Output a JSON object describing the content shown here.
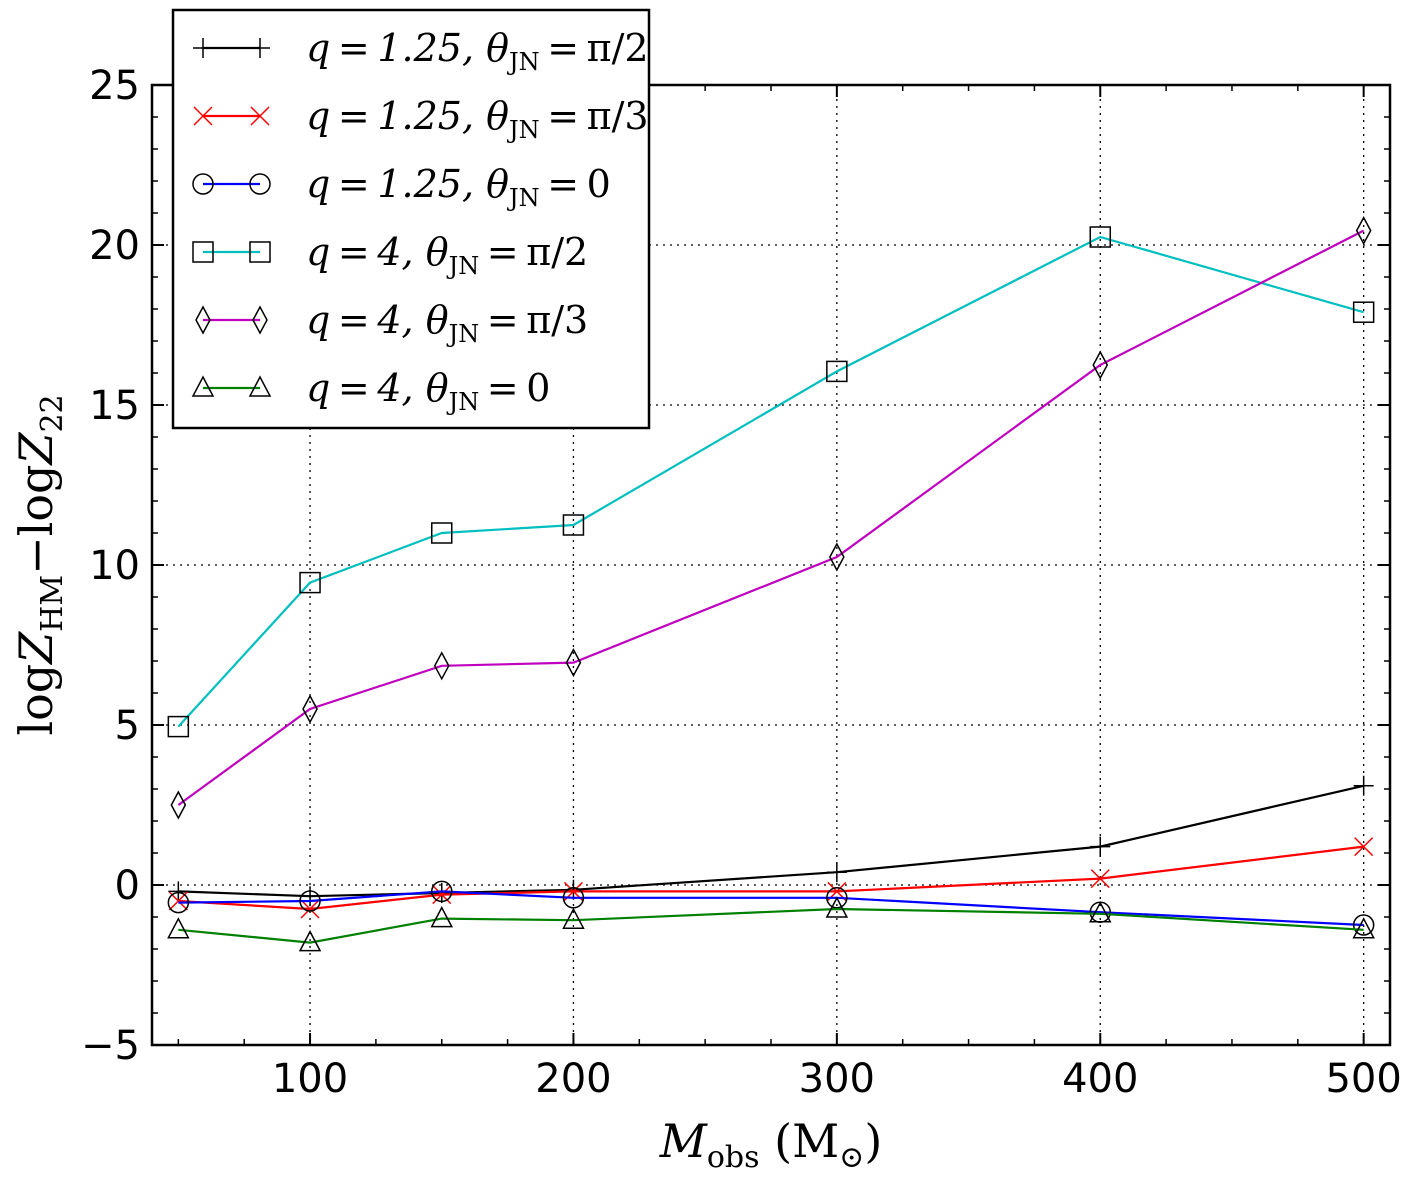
{
  "chart_data": {
    "type": "line",
    "x": [
      50,
      100,
      150,
      200,
      300,
      400,
      500
    ],
    "xlabel": "M_obs (M_⊙)",
    "ylabel": "log Z_HM − log Z_22",
    "xlim": [
      40,
      510
    ],
    "ylim": [
      -5,
      25
    ],
    "x_ticks": [
      100,
      200,
      300,
      400,
      500
    ],
    "y_ticks": [
      -5,
      0,
      5,
      10,
      15,
      20,
      25
    ],
    "x_tick_labels": [
      "100",
      "200",
      "300",
      "400",
      "500"
    ],
    "y_tick_labels": [
      "−5",
      "0",
      "5",
      "10",
      "15",
      "20",
      "25"
    ],
    "grid": true,
    "legend_position": "top-left",
    "series": [
      {
        "name": "q=1.25, θ_JN=π/2",
        "label_q": "q = 1.25, ",
        "label_theta": "θ",
        "label_sub": "JN",
        "label_val": " = π/2",
        "color": "#000000",
        "marker": "plus",
        "values": [
          -0.2,
          -0.35,
          -0.25,
          -0.15,
          0.4,
          1.2,
          3.1
        ]
      },
      {
        "name": "q=1.25, θ_JN=π/3",
        "label_q": "q = 1.25, ",
        "label_theta": "θ",
        "label_sub": "JN",
        "label_val": " = π/3",
        "color": "#ff0000",
        "marker": "x",
        "values": [
          -0.5,
          -0.75,
          -0.3,
          -0.2,
          -0.2,
          0.2,
          1.2
        ]
      },
      {
        "name": "q=1.25, θ_JN=0",
        "label_q": "q = 1.25, ",
        "label_theta": "θ",
        "label_sub": "JN",
        "label_val": " = 0",
        "color": "#0000ff",
        "marker": "circle",
        "values": [
          -0.55,
          -0.5,
          -0.2,
          -0.4,
          -0.4,
          -0.85,
          -1.25
        ]
      },
      {
        "name": "q=4, θ_JN=π/2",
        "label_q": "q = 4, ",
        "label_theta": "θ",
        "label_sub": "JN",
        "label_val": " = π/2",
        "color": "#00bfbf",
        "marker": "square",
        "values": [
          4.95,
          9.45,
          11.0,
          11.25,
          16.05,
          20.25,
          17.9
        ]
      },
      {
        "name": "q=4, θ_JN=π/3",
        "label_q": "q = 4, ",
        "label_theta": "θ",
        "label_sub": "JN",
        "label_val": " = π/3",
        "color": "#bf00bf",
        "marker": "diamond",
        "values": [
          2.5,
          5.5,
          6.85,
          6.95,
          10.25,
          16.25,
          20.45
        ]
      },
      {
        "name": "q=4, θ_JN=0",
        "label_q": "q = 4, ",
        "label_theta": "θ",
        "label_sub": "JN",
        "label_val": " = 0",
        "color": "#008000",
        "marker": "triangle",
        "values": [
          -1.4,
          -1.8,
          -1.05,
          -1.1,
          -0.75,
          -0.9,
          -1.4
        ]
      }
    ]
  }
}
